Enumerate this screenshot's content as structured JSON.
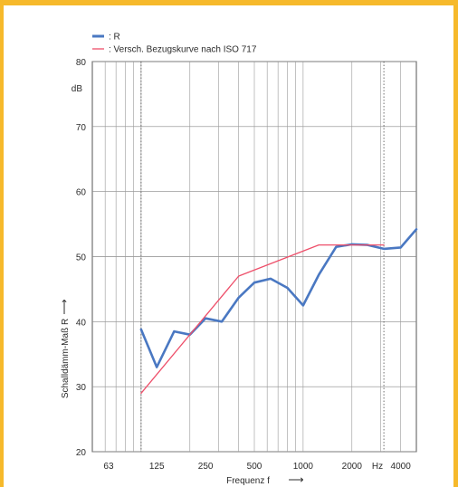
{
  "chart_data": {
    "type": "line",
    "xlabel": "Frequenz f",
    "xlabel_arrow": "⟶",
    "ylabel": "Schalldämm-Maß R",
    "ylabel_arrow": "⟶",
    "y_unit": "dB",
    "x_unit": "Hz",
    "x_scale": "log",
    "x_range_hz": [
      50,
      5000
    ],
    "ylim": [
      20,
      80
    ],
    "y_ticks": [
      20,
      30,
      40,
      50,
      60,
      70,
      80
    ],
    "x_ticks": [
      {
        "hz": 63,
        "label": "63"
      },
      {
        "hz": 125,
        "label": "125"
      },
      {
        "hz": 250,
        "label": "250"
      },
      {
        "hz": 500,
        "label": "500"
      },
      {
        "hz": 1000,
        "label": "1000"
      },
      {
        "hz": 2000,
        "label": "2000"
      },
      {
        "hz": 4000,
        "label": "4000"
      }
    ],
    "dotted_gridlines_hz": [
      100,
      3150
    ],
    "grid": true,
    "legend_position": "top-left",
    "series": [
      {
        "name": ": R",
        "color": "#4a78c2",
        "x": [
          100,
          125,
          160,
          200,
          250,
          315,
          400,
          500,
          630,
          800,
          1000,
          1250,
          1600,
          2000,
          2500,
          3150,
          4000,
          5000
        ],
        "values": [
          38.8,
          33.0,
          38.5,
          38.0,
          40.5,
          40.0,
          43.7,
          46.0,
          46.6,
          45.2,
          42.5,
          47.2,
          51.5,
          51.9,
          51.8,
          51.2,
          51.4,
          54.2
        ]
      },
      {
        "name": ": Versch. Bezugskurve nach ISO 717",
        "color": "#ee4f6a",
        "x": [
          100,
          200,
          400,
          1250,
          3150
        ],
        "values": [
          29.0,
          38.0,
          47.0,
          51.8,
          51.8
        ]
      }
    ]
  }
}
